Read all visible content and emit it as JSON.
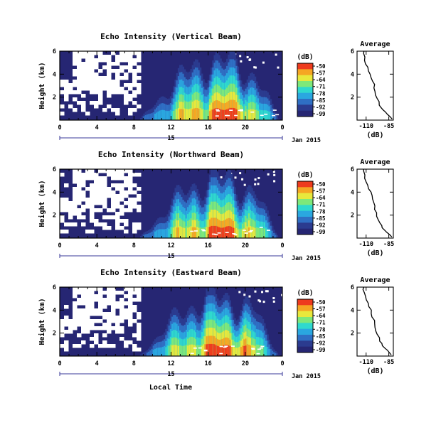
{
  "chart_data": {
    "type": "heatmap",
    "xlabel": "Local Time",
    "x_ticks": [
      "0",
      "4",
      "8",
      "12",
      "16",
      "20",
      "0"
    ],
    "date_label": "15",
    "date_suffix": "Jan 2015",
    "ylabel": "Height (km)",
    "y_ticks": [
      "6",
      "4",
      "2"
    ],
    "ylim": [
      0,
      6
    ],
    "colorbar": {
      "unit": "(dB)",
      "ticks": [
        "-50",
        "-57",
        "-64",
        "-71",
        "-78",
        "-85",
        "-92",
        "-99"
      ],
      "range": [
        -99,
        -50
      ],
      "colors": [
        "#262673",
        "#2b3b8f",
        "#2f6fc4",
        "#2aa7e0",
        "#2fd9ce",
        "#7ee87a",
        "#e8e83c",
        "#f5a623",
        "#ee3b1e"
      ]
    },
    "profile": {
      "title": "Average",
      "xlabel": "(dB)",
      "x_ticks": [
        "-110",
        "-85"
      ],
      "xlim": [
        -120,
        -80
      ],
      "y_ticks": [
        "6",
        "4",
        "2"
      ],
      "ylim": [
        0,
        6
      ],
      "points": [
        [
          -82,
          0.1
        ],
        [
          -84,
          0.3
        ],
        [
          -87,
          0.5
        ],
        [
          -89,
          0.7
        ],
        [
          -92,
          0.9
        ],
        [
          -93,
          1.1
        ],
        [
          -95,
          1.3
        ],
        [
          -96,
          1.6
        ],
        [
          -98,
          1.9
        ],
        [
          -99,
          2.2
        ],
        [
          -100,
          2.5
        ],
        [
          -101,
          2.8
        ],
        [
          -101,
          3.1
        ],
        [
          -103,
          3.4
        ],
        [
          -104,
          3.7
        ],
        [
          -105,
          4.0
        ],
        [
          -107,
          4.3
        ],
        [
          -108,
          4.6
        ],
        [
          -110,
          4.9
        ],
        [
          -111,
          5.2
        ],
        [
          -112,
          5.5
        ],
        [
          -113,
          5.8
        ],
        [
          -113,
          6.0
        ]
      ]
    },
    "panels": [
      {
        "title": "Echo Intensity (Vertical Beam)"
      },
      {
        "title": "Echo Intensity (Northward Beam)"
      },
      {
        "title": "Echo Intensity (Eastward Beam)"
      }
    ]
  }
}
